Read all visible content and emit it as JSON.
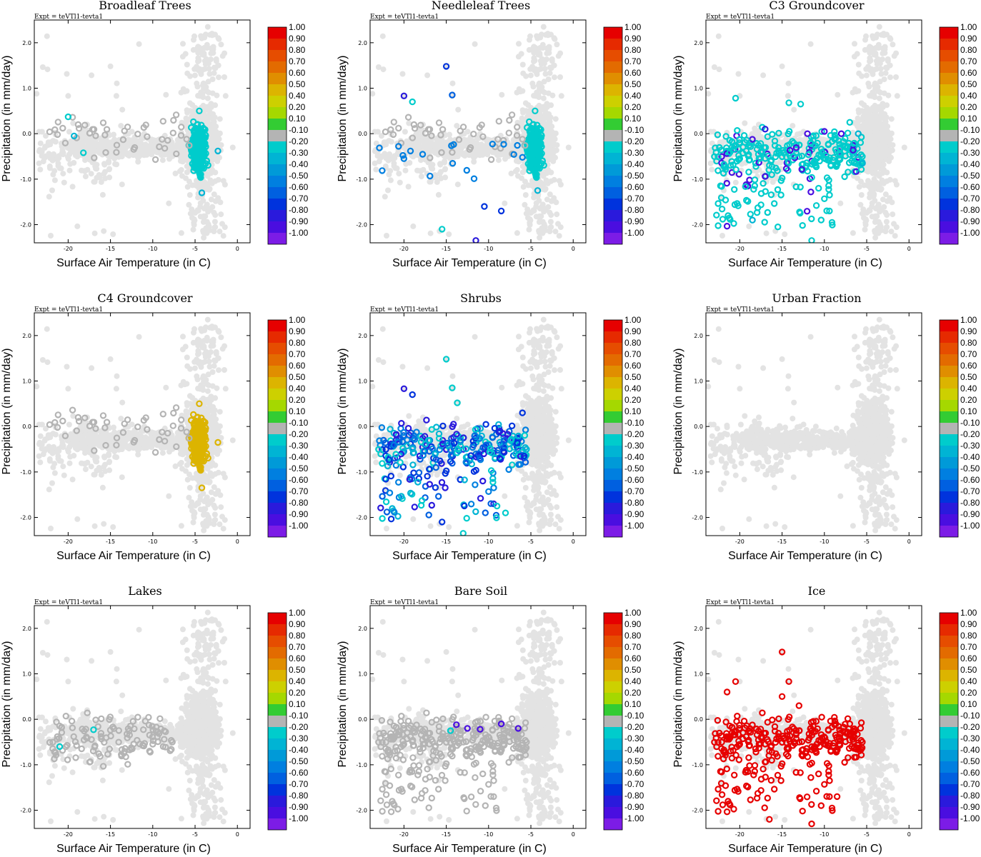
{
  "figure": {
    "experiment": "Expt = teVTl1-tevta1",
    "xlabel": "Surface Air Temperature (in C)",
    "ylabel": "Precipitation (in mm/day)",
    "xlim": [
      -24,
      1.5
    ],
    "ylim": [
      -2.4,
      2.5
    ],
    "xticks": [
      -20,
      -15,
      -10,
      -5,
      0
    ],
    "yticks": [
      -2.0,
      -1.0,
      0.0,
      1.0,
      2.0
    ],
    "background_color": "#e3e3e3",
    "neutral_color": "#b4b4b4"
  },
  "colorbar": {
    "labels": [
      "1.00",
      "0.90",
      "0.80",
      "0.70",
      "0.60",
      "0.50",
      "0.40",
      "0.20",
      "0.10",
      "-0.10",
      "-0.20",
      "-0.30",
      "-0.40",
      "-0.50",
      "-0.60",
      "-0.70",
      "-0.80",
      "-0.90",
      "-1.00"
    ],
    "colors": [
      "#e60000",
      "#e62a00",
      "#e64d00",
      "#e36b00",
      "#e08e00",
      "#dcb400",
      "#cdd000",
      "#a5d800",
      "#33cc33",
      "#b4b4b4",
      "#00cccc",
      "#00b4d4",
      "#009ad8",
      "#007fe0",
      "#0060e0",
      "#0033dd",
      "#2a1adc",
      "#4a0ee0",
      "#7c1ce6"
    ]
  },
  "chart_data": [
    {
      "type": "scatter",
      "title": "Broadleaf Trees",
      "colored_points": [
        [
          -20,
          0.37,
          -0.2
        ],
        [
          -19.3,
          -0.05,
          -0.3
        ],
        [
          -18.2,
          -0.42,
          -0.2
        ],
        [
          -4.5,
          0.5,
          -0.2
        ],
        [
          -4.2,
          -1.3,
          -0.3
        ],
        [
          -2.3,
          -0.38,
          -0.3
        ]
      ]
    },
    {
      "type": "scatter",
      "title": "Needleleaf Trees",
      "colored_points": [
        [
          -20,
          0.83,
          -0.8
        ],
        [
          -19,
          0.7,
          -0.2
        ],
        [
          -15,
          1.48,
          -0.7
        ],
        [
          -14.3,
          0.85,
          -0.6
        ],
        [
          -15.5,
          -2.1,
          -0.2
        ],
        [
          -11.5,
          -2.35,
          -0.8
        ],
        [
          -10.5,
          -1.6,
          -0.7
        ],
        [
          -8.5,
          -1.7,
          -0.7
        ],
        [
          -4.5,
          0.5,
          -0.2
        ],
        [
          -4.2,
          -1.25,
          -0.3
        ]
      ]
    },
    {
      "type": "scatter",
      "title": "C3 Groundcover",
      "colored_points": [
        [
          -20.5,
          0.78,
          -0.2
        ],
        [
          -17,
          0.1,
          -0.8
        ],
        [
          -14.2,
          0.68,
          -0.2
        ],
        [
          -12.8,
          0.65,
          -0.2
        ],
        [
          -12,
          0.0,
          -0.9
        ],
        [
          -10,
          0.05,
          -0.9
        ],
        [
          -8,
          0.0,
          -0.9
        ],
        [
          -7,
          0.25,
          -0.2
        ],
        [
          -6,
          0.0,
          -0.3
        ],
        [
          -5.5,
          -0.65,
          -0.3
        ],
        [
          -15.5,
          -2.05,
          -0.2
        ],
        [
          -11.5,
          -2.35,
          -0.2
        ],
        [
          -18.5,
          -1.9,
          -0.3
        ]
      ]
    },
    {
      "type": "scatter",
      "title": "C4 Groundcover",
      "colored_points": [
        [
          -4.5,
          0.5,
          0.5
        ],
        [
          -4.2,
          -1.35,
          0.5
        ],
        [
          -2.3,
          -0.35,
          0.5
        ]
      ]
    },
    {
      "type": "scatter",
      "title": "Shrubs",
      "colored_points": [
        [
          -15,
          1.48,
          -0.2
        ],
        [
          -14.3,
          0.85,
          -0.2
        ],
        [
          -20,
          0.83,
          -0.8
        ],
        [
          -19,
          0.7,
          -0.7
        ],
        [
          -13.7,
          0.52,
          -0.2
        ],
        [
          -15.5,
          -2.1,
          -0.7
        ],
        [
          -13,
          -2.35,
          -0.2
        ],
        [
          -9,
          -1.75,
          -0.2
        ],
        [
          -8,
          -1.9,
          -0.2
        ],
        [
          -6,
          0.3,
          -0.7
        ],
        [
          -5.8,
          -0.65,
          -0.7
        ]
      ]
    },
    {
      "type": "scatter",
      "title": "Urban Fraction",
      "colored_points": []
    },
    {
      "type": "scatter",
      "title": "Lakes",
      "colored_points": [
        [
          -21,
          -0.6,
          -0.2
        ],
        [
          -17,
          -0.23,
          -0.2
        ]
      ]
    },
    {
      "type": "scatter",
      "title": "Bare Soil",
      "colored_points": [
        [
          -13.8,
          -0.12,
          -0.9
        ],
        [
          -12.5,
          -0.2,
          -0.9
        ],
        [
          -11,
          -0.22,
          -0.9
        ],
        [
          -8.5,
          -0.1,
          -0.9
        ],
        [
          -6.5,
          -0.2,
          -0.9
        ],
        [
          -14.5,
          -0.25,
          -0.2
        ]
      ]
    },
    {
      "type": "scatter",
      "title": "Ice",
      "colored_points": [
        [
          -15,
          1.48,
          1.0
        ],
        [
          -20.5,
          0.83,
          1.0
        ],
        [
          -14.2,
          0.83,
          1.0
        ],
        [
          -16.5,
          -2.2,
          1.0
        ],
        [
          -11.5,
          -2.3,
          1.0
        ],
        [
          -8.5,
          -1.7,
          1.0
        ],
        [
          -6,
          -0.65,
          1.0
        ],
        [
          -21.5,
          0.6,
          1.0
        ],
        [
          -15,
          0.5,
          1.0
        ],
        [
          -13,
          0.3,
          1.0
        ],
        [
          -7,
          -0.1,
          1.0
        ]
      ]
    }
  ]
}
